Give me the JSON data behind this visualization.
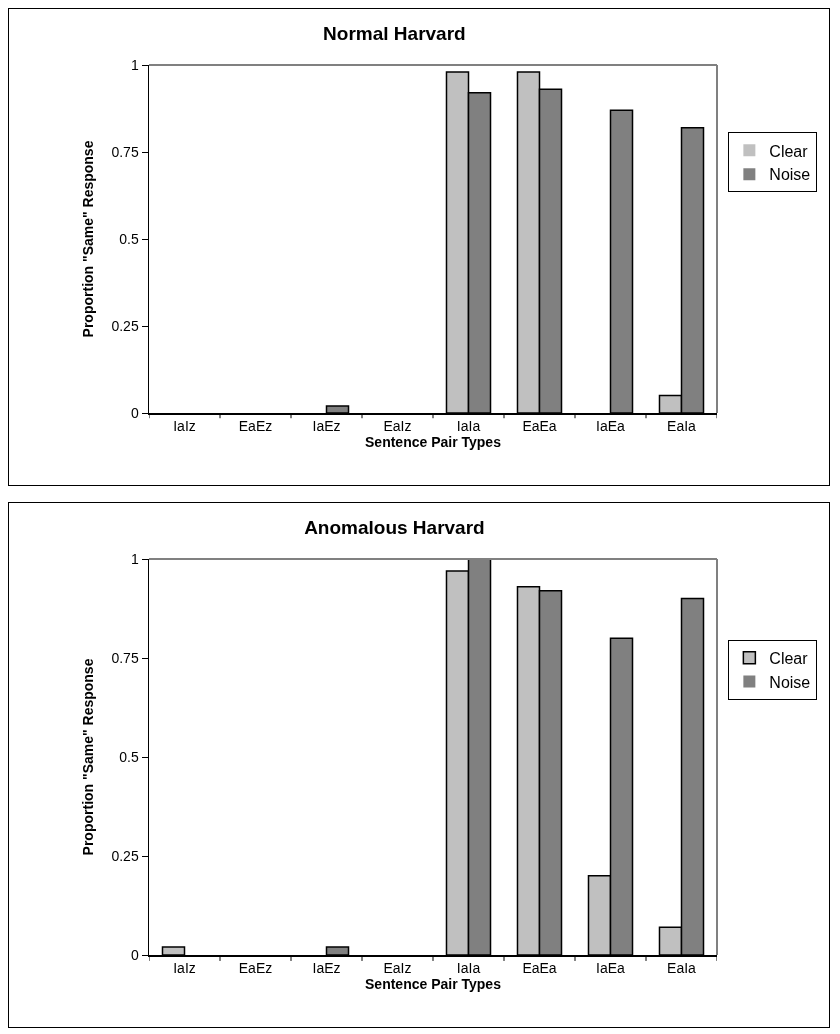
{
  "chart_data": [
    {
      "type": "bar",
      "title": "Normal Harvard",
      "xlabel": "Sentence Pair Types",
      "ylabel": "Proportion \"Same\" Response",
      "categories": [
        "IaIz",
        "EaEz",
        "IaEz",
        "EaIz",
        "IaIa",
        "EaEa",
        "IaEa",
        "EaIa"
      ],
      "series": [
        {
          "name": "Clear",
          "color": "#c0c0c0",
          "values": [
            0,
            0,
            0,
            0,
            0.98,
            0.98,
            0,
            0.05
          ]
        },
        {
          "name": "Noise",
          "color": "#808080",
          "values": [
            0,
            0,
            0.02,
            0,
            0.92,
            0.93,
            0.87,
            0.82
          ]
        }
      ],
      "ylim": [
        0,
        1
      ],
      "yticks": [
        0,
        0.25,
        0.5,
        0.75,
        1
      ],
      "grid": false,
      "legend": "right"
    },
    {
      "type": "bar",
      "title": "Anomalous Harvard",
      "xlabel": "Sentence Pair Types",
      "ylabel": "Proportion \"Same\" Response",
      "categories": [
        "IaIz",
        "EaEz",
        "IaEz",
        "EaIz",
        "IaIa",
        "EaEa",
        "IaEa",
        "EaIa"
      ],
      "series": [
        {
          "name": "Clear",
          "color": "#c0c0c0",
          "values": [
            0.02,
            0,
            0,
            0,
            0.97,
            0.93,
            0.2,
            0.07
          ]
        },
        {
          "name": "Noise",
          "color": "#808080",
          "values": [
            0,
            0,
            0.02,
            0,
            1,
            0.92,
            0.8,
            0.9
          ]
        }
      ],
      "ylim": [
        0,
        1
      ],
      "yticks": [
        0,
        0.25,
        0.5,
        0.75,
        1
      ],
      "grid": false,
      "legend": "right"
    }
  ]
}
